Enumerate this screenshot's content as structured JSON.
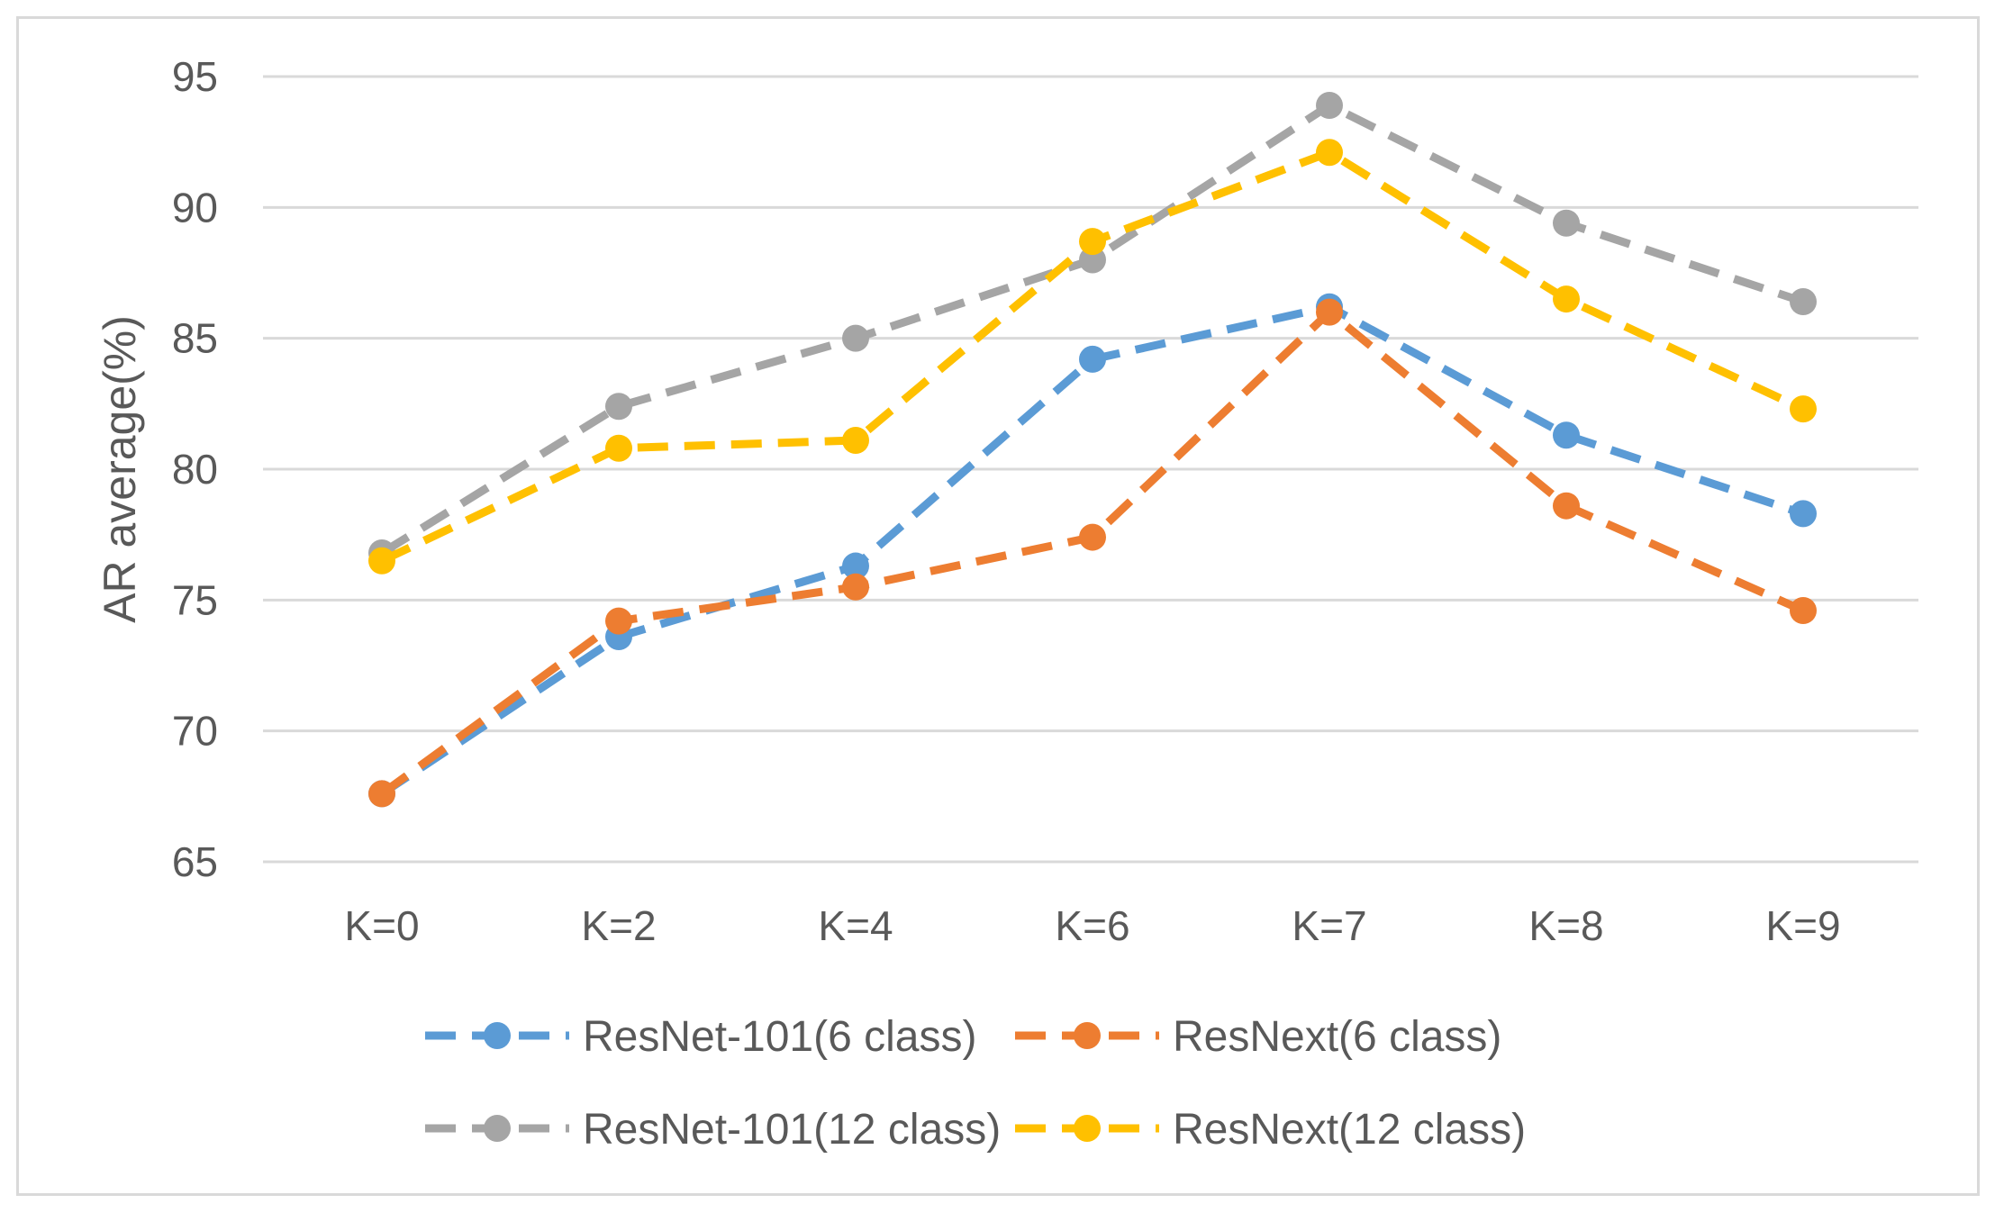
{
  "chart_data": {
    "type": "line",
    "title": "",
    "xlabel": "",
    "ylabel": "AR average(%)",
    "categories": [
      "K=0",
      "K=2",
      "K=4",
      "K=6",
      "K=7",
      "K=8",
      "K=9"
    ],
    "ylim": [
      65,
      95
    ],
    "yticks": [
      65,
      70,
      75,
      80,
      85,
      90,
      95
    ],
    "grid": true,
    "legend_position": "bottom",
    "line_style": "dashed",
    "marker": "circle",
    "series": [
      {
        "name": "ResNet-101(6 class)",
        "color": "#5b9bd5",
        "values": [
          67.6,
          73.6,
          76.3,
          84.2,
          86.2,
          81.3,
          78.3
        ]
      },
      {
        "name": "ResNext(6 class)",
        "color": "#ed7d31",
        "values": [
          67.6,
          74.2,
          75.5,
          77.4,
          86.0,
          78.6,
          74.6
        ]
      },
      {
        "name": "ResNet-101(12 class)",
        "color": "#a5a5a5",
        "values": [
          76.8,
          82.4,
          85.0,
          88.0,
          93.9,
          89.4,
          86.4
        ]
      },
      {
        "name": "ResNext(12 class)",
        "color": "#ffc000",
        "values": [
          76.5,
          80.8,
          81.1,
          88.7,
          92.1,
          86.5,
          82.3
        ]
      }
    ]
  }
}
